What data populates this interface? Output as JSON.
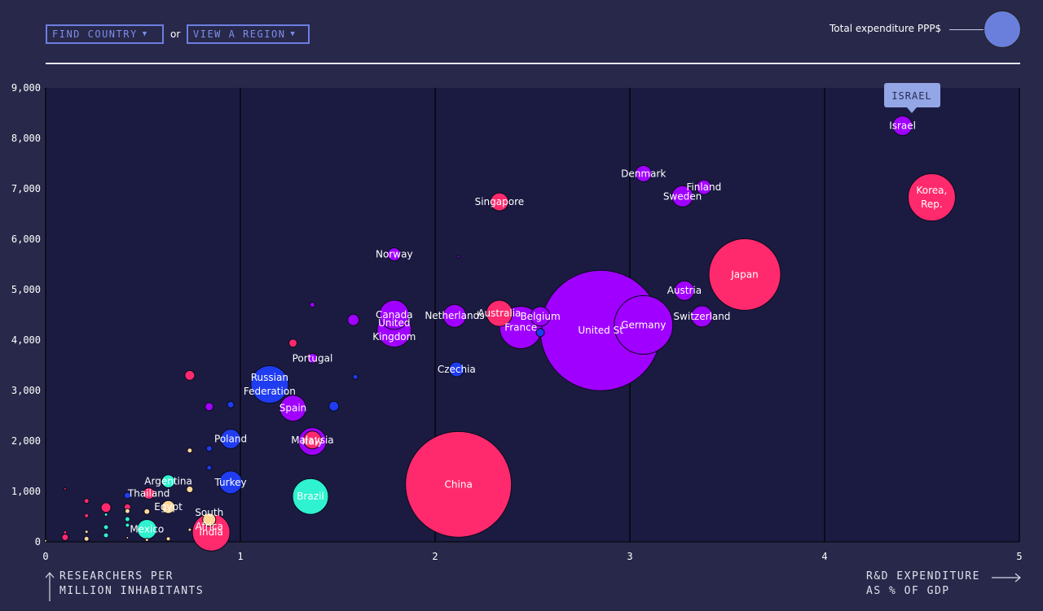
{
  "controls": {
    "find_country": "FIND COUNTRY",
    "or": "or",
    "view_region": "VIEW A REGION",
    "caret": "▼"
  },
  "legend": {
    "size_label": "Total expenditure PPP$",
    "circle_color": "#6a7fdc"
  },
  "tooltip": {
    "text": "ISRAEL",
    "bg": "#93a6e6"
  },
  "colors": {
    "pink": "#ff2a6d",
    "purple": "#a000ff",
    "blue": "#1f3cf0",
    "teal": "#2ef2d0",
    "cream": "#ffd899",
    "plot_bg": "#1b1b42",
    "page_bg": "#28284a"
  },
  "axes": {
    "x_title_lines": [
      "R&D EXPENDITURE",
      "AS % OF GDP"
    ],
    "y_title_lines": [
      "RESEARCHERS PER",
      "MILLION INHABITANTS"
    ]
  },
  "chart_data": {
    "type": "scatter",
    "x": {
      "label": "R&D EXPENDITURE AS % OF GDP",
      "lim": [
        0,
        5
      ],
      "ticks": [
        "0",
        "1",
        "2",
        "3",
        "4",
        "5"
      ]
    },
    "y": {
      "label": "RESEARCHERS PER MILLION INHABITANTS",
      "lim": [
        0,
        9000
      ],
      "ticks": [
        "0",
        "1,000",
        "2,000",
        "3,000",
        "4,000",
        "5,000",
        "6,000",
        "7,000",
        "8,000",
        "9,000"
      ]
    },
    "size_encoding": "Total expenditure PPP$",
    "points": [
      {
        "name": "United States",
        "label": "United St",
        "x": 2.85,
        "y": 4190,
        "r": 74,
        "c": "purple"
      },
      {
        "name": "China",
        "label": "China",
        "x": 2.12,
        "y": 1140,
        "r": 65,
        "c": "pink"
      },
      {
        "name": "Japan",
        "label": "Japan",
        "x": 3.59,
        "y": 5300,
        "r": 44,
        "c": "pink"
      },
      {
        "name": "Germany",
        "label": "Germany",
        "x": 3.07,
        "y": 4300,
        "r": 36,
        "c": "purple"
      },
      {
        "name": "Korea, Rep.",
        "label": "Korea,\nRep.",
        "x": 4.55,
        "y": 6830,
        "r": 29,
        "c": "pink"
      },
      {
        "name": "France",
        "label": "France",
        "x": 2.44,
        "y": 4250,
        "r": 26,
        "c": "purple"
      },
      {
        "name": "India",
        "label": "India",
        "x": 0.85,
        "y": 190,
        "r": 23,
        "c": "pink"
      },
      {
        "name": "United Kingdom",
        "label": "United\nKingdom",
        "x": 1.79,
        "y": 4200,
        "r": 21,
        "c": "purple"
      },
      {
        "name": "Russian Federation",
        "label": "Russian\nFederation",
        "x": 1.15,
        "y": 3120,
        "r": 23,
        "c": "blue"
      },
      {
        "name": "Brazil",
        "label": "Brazil",
        "x": 1.36,
        "y": 900,
        "r": 22,
        "c": "teal"
      },
      {
        "name": "Canada",
        "label": "Canada",
        "x": 1.79,
        "y": 4500,
        "r": 18,
        "c": "purple"
      },
      {
        "name": "Italy",
        "label": "Italy",
        "x": 1.37,
        "y": 1990,
        "r": 17,
        "c": "purple"
      },
      {
        "name": "Spain",
        "label": "Spain",
        "x": 1.27,
        "y": 2650,
        "r": 16,
        "c": "purple"
      },
      {
        "name": "Australia",
        "label": "Australia",
        "x": 2.33,
        "y": 4530,
        "r": 16,
        "c": "pink"
      },
      {
        "name": "Netherlands",
        "label": "Netherlands",
        "x": 2.1,
        "y": 4480,
        "r": 14,
        "c": "purple"
      },
      {
        "name": "Turkey",
        "label": "Turkey",
        "x": 0.95,
        "y": 1180,
        "r": 14,
        "c": "blue"
      },
      {
        "name": "Switzerland",
        "label": "Switzerland",
        "x": 3.37,
        "y": 4470,
        "r": 13,
        "c": "purple"
      },
      {
        "name": "Sweden",
        "label": "Sweden",
        "x": 3.27,
        "y": 6850,
        "r": 13,
        "c": "purple"
      },
      {
        "name": "Austria",
        "label": "Austria",
        "x": 3.28,
        "y": 4980,
        "r": 12,
        "c": "purple"
      },
      {
        "name": "Belgium",
        "label": "Belgium",
        "x": 2.54,
        "y": 4470,
        "r": 12,
        "c": "purple"
      },
      {
        "name": "Poland",
        "label": "Poland",
        "x": 0.95,
        "y": 2040,
        "r": 12,
        "c": "blue"
      },
      {
        "name": "Israel",
        "label": "Israel",
        "x": 4.4,
        "y": 8250,
        "r": 12,
        "c": "purple"
      },
      {
        "name": "Mexico",
        "label": "Mexico",
        "x": 0.52,
        "y": 250,
        "r": 12,
        "c": "teal"
      },
      {
        "name": "Malaysia",
        "label": "Malaysia",
        "x": 1.37,
        "y": 2020,
        "r": 11,
        "c": "pink"
      },
      {
        "name": "Singapore",
        "label": "Singapore",
        "x": 2.33,
        "y": 6740,
        "r": 11,
        "c": "pink"
      },
      {
        "name": "Denmark",
        "label": "Denmark",
        "x": 3.07,
        "y": 7300,
        "r": 10,
        "c": "purple"
      },
      {
        "name": "Finland",
        "label": "Finland",
        "x": 3.38,
        "y": 7030,
        "r": 9,
        "c": "purple"
      },
      {
        "name": "Czechia",
        "label": "Czechia",
        "x": 2.11,
        "y": 3420,
        "r": 9,
        "c": "blue"
      },
      {
        "name": "Norway",
        "label": "Norway",
        "x": 1.79,
        "y": 5700,
        "r": 8,
        "c": "purple"
      },
      {
        "name": "Portugal",
        "label": "Portugal",
        "x": 1.37,
        "y": 3640,
        "r": 6,
        "c": "purple"
      },
      {
        "name": "Argentina",
        "label": "Argentina",
        "x": 0.63,
        "y": 1200,
        "r": 8,
        "c": "teal"
      },
      {
        "name": "Thailand",
        "label": "Thailand",
        "x": 0.53,
        "y": 960,
        "r": 7,
        "c": "pink"
      },
      {
        "name": "Egypt",
        "label": "Egypt",
        "x": 0.63,
        "y": 690,
        "r": 8,
        "c": "cream"
      },
      {
        "name": "South Africa",
        "label": "South\nAfrica",
        "x": 0.84,
        "y": 440,
        "r": 8,
        "c": "cream"
      },
      {
        "name": "",
        "label": "",
        "x": 0.74,
        "y": 3300,
        "r": 6,
        "c": "pink"
      },
      {
        "name": "",
        "label": "",
        "x": 1.27,
        "y": 3940,
        "r": 5,
        "c": "pink"
      },
      {
        "name": "",
        "label": "",
        "x": 1.58,
        "y": 4400,
        "r": 7,
        "c": "purple"
      },
      {
        "name": "",
        "label": "",
        "x": 1.37,
        "y": 4700,
        "r": 3,
        "c": "purple"
      },
      {
        "name": "",
        "label": "",
        "x": 2.12,
        "y": 5650,
        "r": 1.5,
        "c": "purple"
      },
      {
        "name": "",
        "label": "",
        "x": 2.54,
        "y": 4150,
        "r": 5,
        "c": "blue"
      },
      {
        "name": "",
        "label": "",
        "x": 1.59,
        "y": 3270,
        "r": 3,
        "c": "blue"
      },
      {
        "name": "",
        "label": "",
        "x": 1.48,
        "y": 2690,
        "r": 6,
        "c": "blue"
      },
      {
        "name": "",
        "label": "",
        "x": 0.84,
        "y": 2680,
        "r": 5,
        "c": "purple"
      },
      {
        "name": "",
        "label": "",
        "x": 0.95,
        "y": 2720,
        "r": 4,
        "c": "blue"
      },
      {
        "name": "",
        "label": "",
        "x": 0.84,
        "y": 1850,
        "r": 3.5,
        "c": "blue"
      },
      {
        "name": "",
        "label": "",
        "x": 0.74,
        "y": 1810,
        "r": 3,
        "c": "cream"
      },
      {
        "name": "",
        "label": "",
        "x": 0.84,
        "y": 1470,
        "r": 3,
        "c": "blue"
      },
      {
        "name": "",
        "label": "",
        "x": 0.74,
        "y": 1040,
        "r": 4,
        "c": "cream"
      },
      {
        "name": "",
        "label": "",
        "x": 0.42,
        "y": 920,
        "r": 4,
        "c": "blue"
      },
      {
        "name": "",
        "label": "",
        "x": 0.31,
        "y": 680,
        "r": 6,
        "c": "pink"
      },
      {
        "name": "",
        "label": "",
        "x": 0.42,
        "y": 690,
        "r": 4,
        "c": "pink"
      },
      {
        "name": "",
        "label": "",
        "x": 0.42,
        "y": 610,
        "r": 3,
        "c": "cream"
      },
      {
        "name": "",
        "label": "",
        "x": 0.52,
        "y": 600,
        "r": 3.5,
        "c": "cream"
      },
      {
        "name": "",
        "label": "",
        "x": 0.21,
        "y": 810,
        "r": 3,
        "c": "pink"
      },
      {
        "name": "",
        "label": "",
        "x": 0.21,
        "y": 520,
        "r": 2.5,
        "c": "pink"
      },
      {
        "name": "",
        "label": "",
        "x": 0.31,
        "y": 540,
        "r": 2,
        "c": "teal"
      },
      {
        "name": "",
        "label": "",
        "x": 0.42,
        "y": 450,
        "r": 3,
        "c": "teal"
      },
      {
        "name": "",
        "label": "",
        "x": 0.42,
        "y": 330,
        "r": 2.5,
        "c": "teal"
      },
      {
        "name": "",
        "label": "",
        "x": 0.31,
        "y": 290,
        "r": 3,
        "c": "teal"
      },
      {
        "name": "",
        "label": "",
        "x": 0.31,
        "y": 130,
        "r": 3,
        "c": "teal"
      },
      {
        "name": "",
        "label": "",
        "x": 0.21,
        "y": 200,
        "r": 2,
        "c": "cream"
      },
      {
        "name": "",
        "label": "",
        "x": 0.21,
        "y": 60,
        "r": 3,
        "c": "cream"
      },
      {
        "name": "",
        "label": "",
        "x": 0.1,
        "y": 90,
        "r": 4,
        "c": "pink"
      },
      {
        "name": "",
        "label": "",
        "x": 0.1,
        "y": 190,
        "r": 2,
        "c": "pink"
      },
      {
        "name": "",
        "label": "",
        "x": 0.42,
        "y": 80,
        "r": 1.5,
        "c": "cream"
      },
      {
        "name": "",
        "label": "",
        "x": 0.52,
        "y": 40,
        "r": 2,
        "c": "cream"
      },
      {
        "name": "",
        "label": "",
        "x": 0.63,
        "y": 60,
        "r": 2.5,
        "c": "cream"
      },
      {
        "name": "",
        "label": "",
        "x": 0.74,
        "y": 240,
        "r": 2,
        "c": "cream"
      },
      {
        "name": "",
        "label": "",
        "x": 0.1,
        "y": 1050,
        "r": 1.5,
        "c": "pink"
      },
      {
        "name": "",
        "label": "",
        "x": 0.0,
        "y": 20,
        "r": 1.5,
        "c": "cream"
      }
    ]
  }
}
